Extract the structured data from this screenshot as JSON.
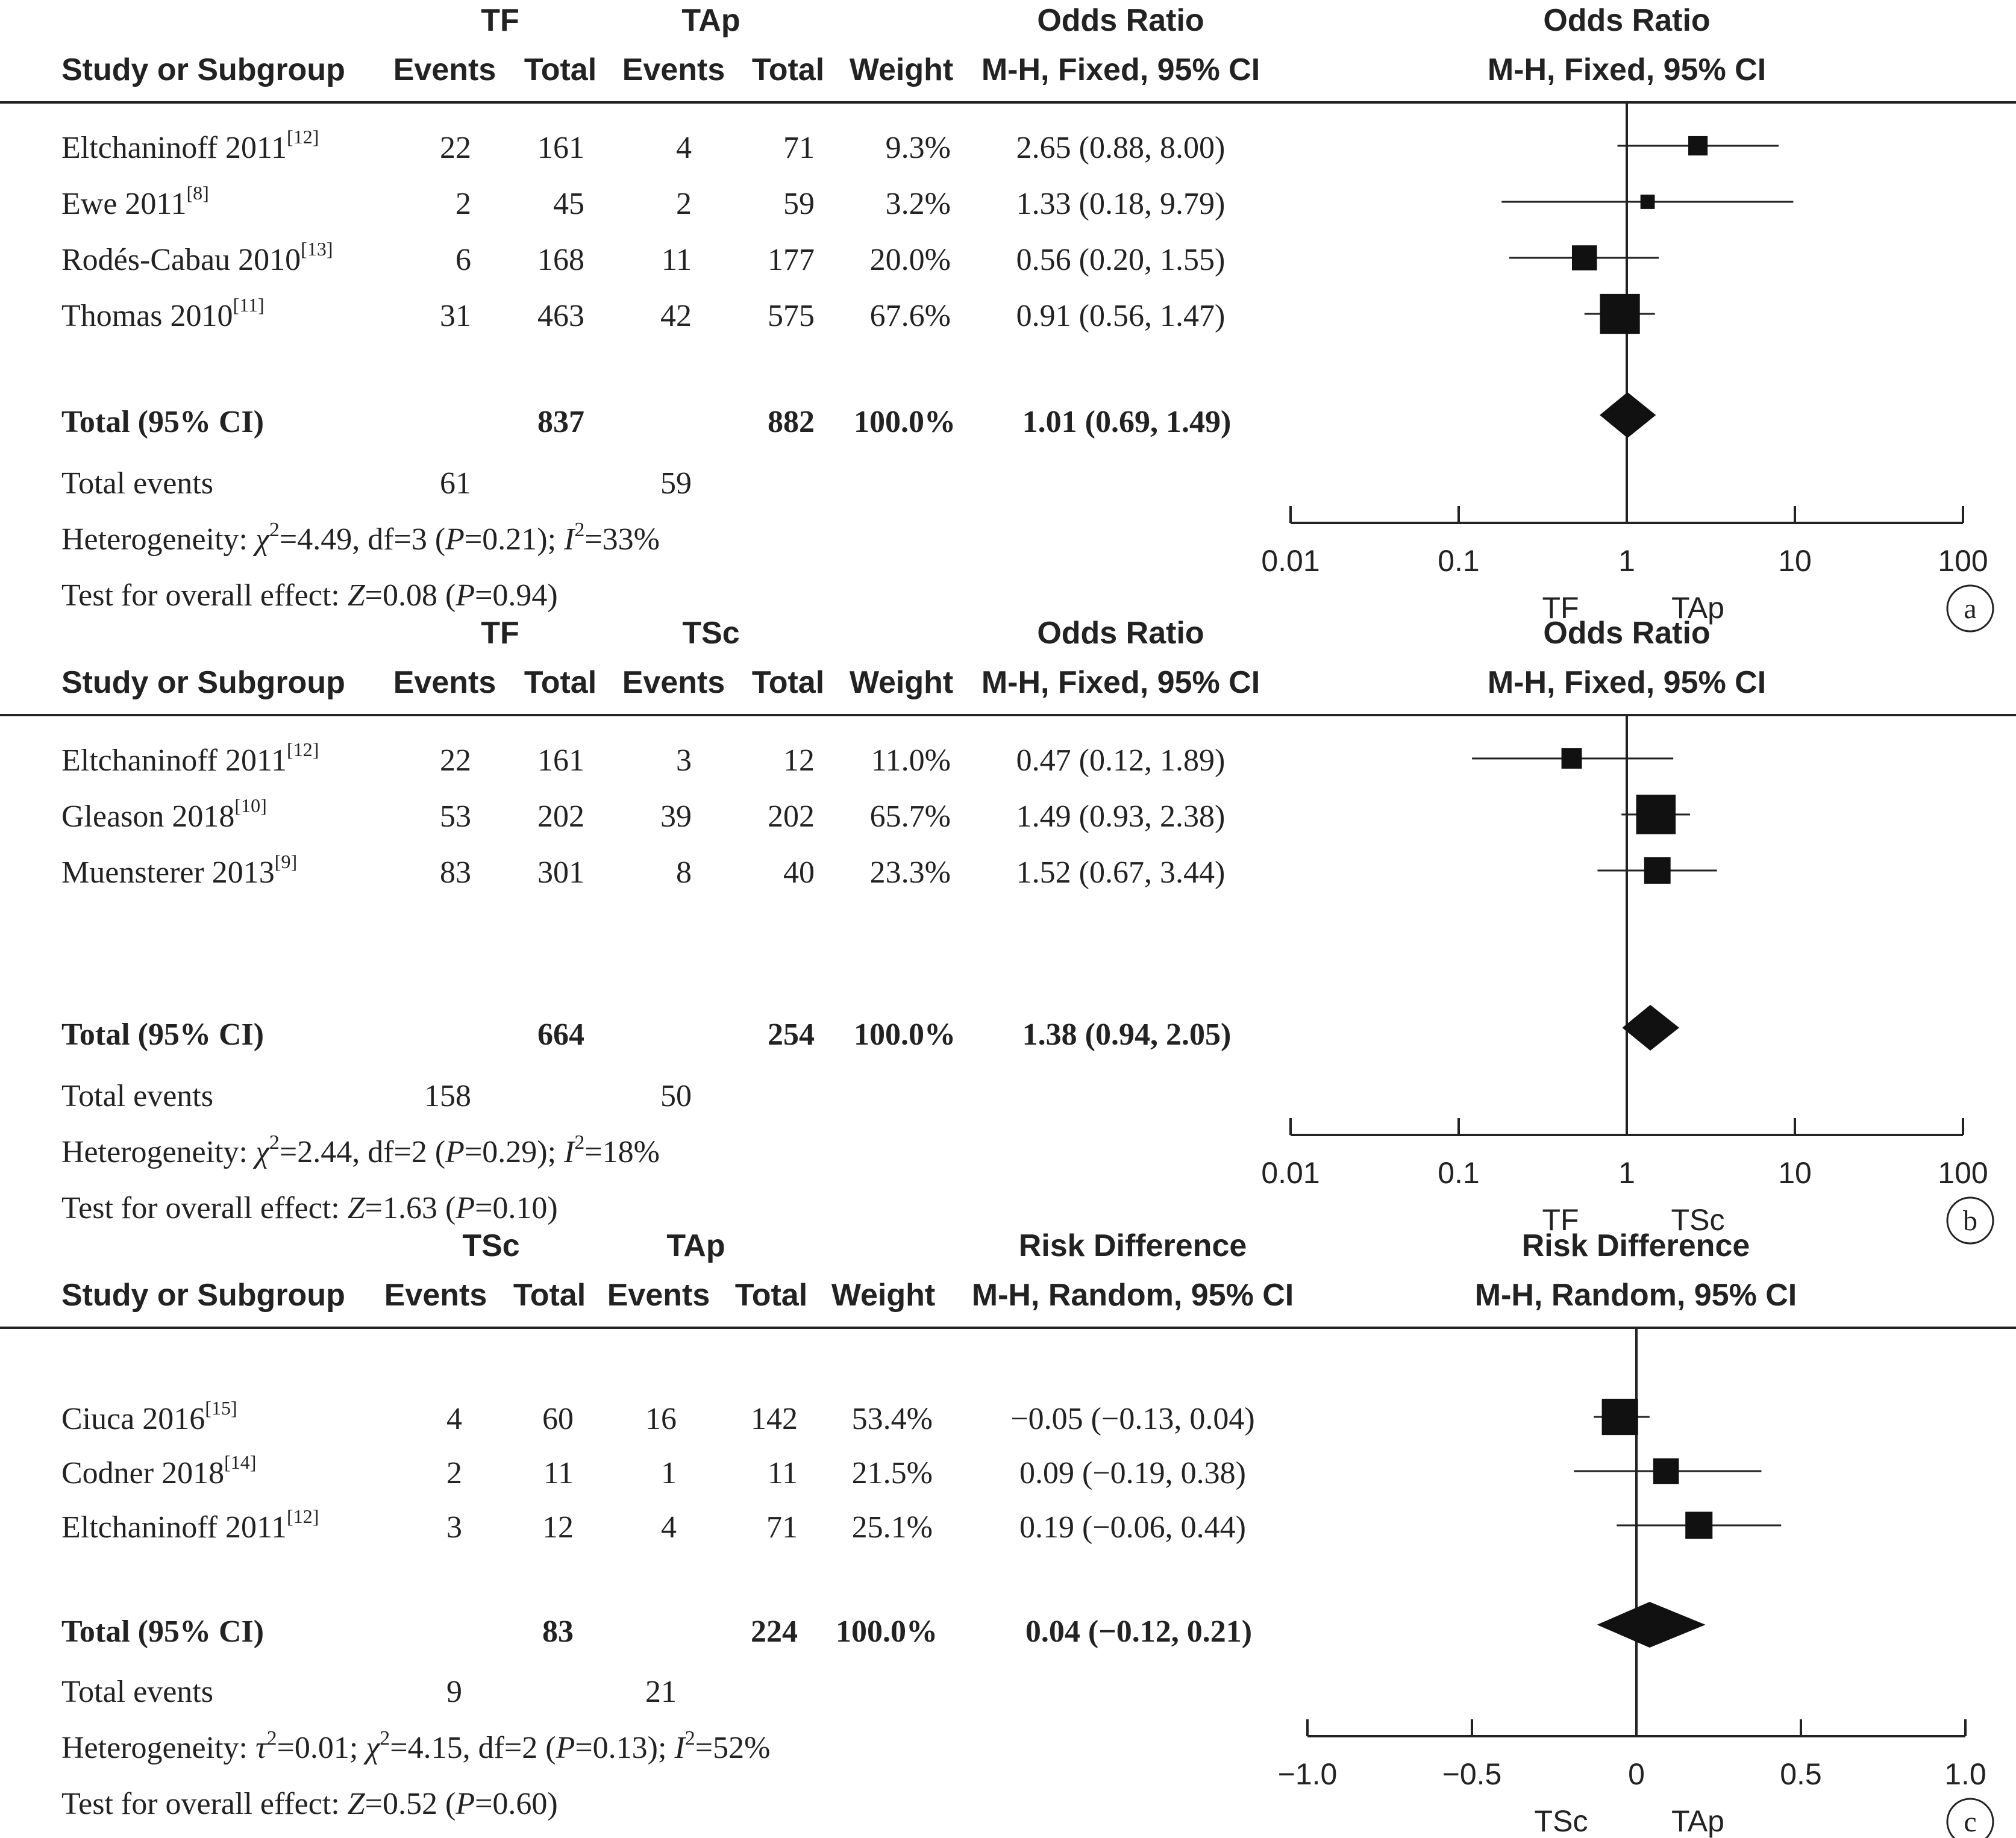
{
  "chart_data": [
    {
      "type": "forest",
      "panel_label": "a",
      "group1": "TF",
      "group2": "TAp",
      "columns": {
        "study": "Study or Subgroup",
        "events": "Events",
        "total": "Total",
        "weight": "Weight"
      },
      "effect_header": [
        "Odds Ratio",
        "M-H, Fixed, 95% CI"
      ],
      "plot_header": [
        "Odds Ratio",
        "M-H, Fixed, 95% CI"
      ],
      "scale": "log",
      "xlim": [
        0.01,
        100
      ],
      "null_value": 1,
      "ticks": [
        {
          "v": 0.01,
          "label": "0.01"
        },
        {
          "v": 0.1,
          "label": "0.1"
        },
        {
          "v": 1,
          "label": "1"
        },
        {
          "v": 10,
          "label": "10"
        },
        {
          "v": 100,
          "label": "100"
        }
      ],
      "favours": [
        "TF",
        "TAp"
      ],
      "studies": [
        {
          "name": "Eltchaninoff 2011",
          "ref": "[12]",
          "e1": "22",
          "n1": "161",
          "e2": "4",
          "n2": "71",
          "weight": "9.3%",
          "ci_text": "2.65 (0.88, 8.00)",
          "est": 2.65,
          "lo": 0.88,
          "hi": 8.0
        },
        {
          "name": "Ewe 2011",
          "ref": "[8]",
          "e1": "2",
          "n1": "45",
          "e2": "2",
          "n2": "59",
          "weight": "3.2%",
          "ci_text": "1.33 (0.18, 9.79)",
          "est": 1.33,
          "lo": 0.18,
          "hi": 9.79
        },
        {
          "name": "Rodés-Cabau 2010",
          "ref": "[13]",
          "e1": "6",
          "n1": "168",
          "e2": "11",
          "n2": "177",
          "weight": "20.0%",
          "ci_text": "0.56 (0.20, 1.55)",
          "est": 0.56,
          "lo": 0.2,
          "hi": 1.55
        },
        {
          "name": "Thomas 2010",
          "ref": "[11]",
          "e1": "31",
          "n1": "463",
          "e2": "42",
          "n2": "575",
          "weight": "67.6%",
          "ci_text": "0.91 (0.56, 1.47)",
          "est": 0.91,
          "lo": 0.56,
          "hi": 1.47
        }
      ],
      "total": {
        "label": "Total (95% CI)",
        "n1": "837",
        "n2": "882",
        "weight": "100.0%",
        "ci_text": "1.01 (0.69, 1.49)",
        "est": 1.01,
        "lo": 0.69,
        "hi": 1.49
      },
      "total_events": {
        "label": "Total events",
        "e1": "61",
        "e2": "59"
      },
      "heterogeneity": "Heterogeneity: χ²=4.49, df=3 (P=0.21); I²=33%",
      "overall_effect": "Test for overall effect: Z=0.08 (P=0.94)"
    },
    {
      "type": "forest",
      "panel_label": "b",
      "group1": "TF",
      "group2": "TSc",
      "columns": {
        "study": "Study or Subgroup",
        "events": "Events",
        "total": "Total",
        "weight": "Weight"
      },
      "effect_header": [
        "Odds Ratio",
        "M-H, Fixed, 95% CI"
      ],
      "plot_header": [
        "Odds Ratio",
        "M-H, Fixed, 95% CI"
      ],
      "scale": "log",
      "xlim": [
        0.01,
        100
      ],
      "null_value": 1,
      "ticks": [
        {
          "v": 0.01,
          "label": "0.01"
        },
        {
          "v": 0.1,
          "label": "0.1"
        },
        {
          "v": 1,
          "label": "1"
        },
        {
          "v": 10,
          "label": "10"
        },
        {
          "v": 100,
          "label": "100"
        }
      ],
      "favours": [
        "TF",
        "TSc"
      ],
      "studies": [
        {
          "name": "Eltchaninoff 2011",
          "ref": "[12]",
          "e1": "22",
          "n1": "161",
          "e2": "3",
          "n2": "12",
          "weight": "11.0%",
          "ci_text": "0.47 (0.12, 1.89)",
          "est": 0.47,
          "lo": 0.12,
          "hi": 1.89
        },
        {
          "name": "Gleason 2018",
          "ref": "[10]",
          "e1": "53",
          "n1": "202",
          "e2": "39",
          "n2": "202",
          "weight": "65.7%",
          "ci_text": "1.49 (0.93, 2.38)",
          "est": 1.49,
          "lo": 0.93,
          "hi": 2.38
        },
        {
          "name": "Muensterer 2013",
          "ref": "[9]",
          "e1": "83",
          "n1": "301",
          "e2": "8",
          "n2": "40",
          "weight": "23.3%",
          "ci_text": "1.52 (0.67, 3.44)",
          "est": 1.52,
          "lo": 0.67,
          "hi": 3.44
        }
      ],
      "total": {
        "label": "Total (95% CI)",
        "n1": "664",
        "n2": "254",
        "weight": "100.0%",
        "ci_text": "1.38 (0.94, 2.05)",
        "est": 1.38,
        "lo": 0.94,
        "hi": 2.05
      },
      "total_events": {
        "label": "Total events",
        "e1": "158",
        "e2": "50"
      },
      "heterogeneity": "Heterogeneity: χ²=2.44, df=2 (P=0.29); I²=18%",
      "overall_effect": "Test for overall effect: Z=1.63 (P=0.10)"
    },
    {
      "type": "forest",
      "panel_label": "c",
      "group1": "TSc",
      "group2": "TAp",
      "columns": {
        "study": "Study or Subgroup",
        "events": "Events",
        "total": "Total",
        "weight": "Weight"
      },
      "effect_header": [
        "Risk Difference",
        "M-H, Random, 95% CI"
      ],
      "plot_header": [
        "Risk Difference",
        "M-H, Random, 95% CI"
      ],
      "scale": "linear",
      "xlim": [
        -1.0,
        1.0
      ],
      "null_value": 0,
      "ticks": [
        {
          "v": -1.0,
          "label": "−1.0"
        },
        {
          "v": -0.5,
          "label": "−0.5"
        },
        {
          "v": 0,
          "label": "0"
        },
        {
          "v": 0.5,
          "label": "0.5"
        },
        {
          "v": 1.0,
          "label": "1.0"
        }
      ],
      "favours": [
        "TSc",
        "TAp"
      ],
      "studies": [
        {
          "name": "Ciuca 2016",
          "ref": "[15]",
          "e1": "4",
          "n1": "60",
          "e2": "16",
          "n2": "142",
          "weight": "53.4%",
          "ci_text": "−0.05 (−0.13, 0.04)",
          "est": -0.05,
          "lo": -0.13,
          "hi": 0.04
        },
        {
          "name": "Codner 2018",
          "ref": "[14]",
          "e1": "2",
          "n1": "11",
          "e2": "1",
          "n2": "11",
          "weight": "21.5%",
          "ci_text": "0.09 (−0.19, 0.38)",
          "est": 0.09,
          "lo": -0.19,
          "hi": 0.38
        },
        {
          "name": "Eltchaninoff 2011",
          "ref": "[12]",
          "e1": "3",
          "n1": "12",
          "e2": "4",
          "n2": "71",
          "weight": "25.1%",
          "ci_text": "0.19 (−0.06, 0.44)",
          "est": 0.19,
          "lo": -0.06,
          "hi": 0.44
        }
      ],
      "total": {
        "label": "Total (95% CI)",
        "n1": "83",
        "n2": "224",
        "weight": "100.0%",
        "ci_text": "0.04 (−0.12, 0.21)",
        "est": 0.04,
        "lo": -0.12,
        "hi": 0.21
      },
      "total_events": {
        "label": "Total events",
        "e1": "9",
        "e2": "21"
      },
      "heterogeneity": "Heterogeneity: τ²=0.01; χ²=4.15, df=2 (P=0.13); I²=52%",
      "overall_effect": "Test for overall effect: Z=0.52 (P=0.60)"
    }
  ]
}
